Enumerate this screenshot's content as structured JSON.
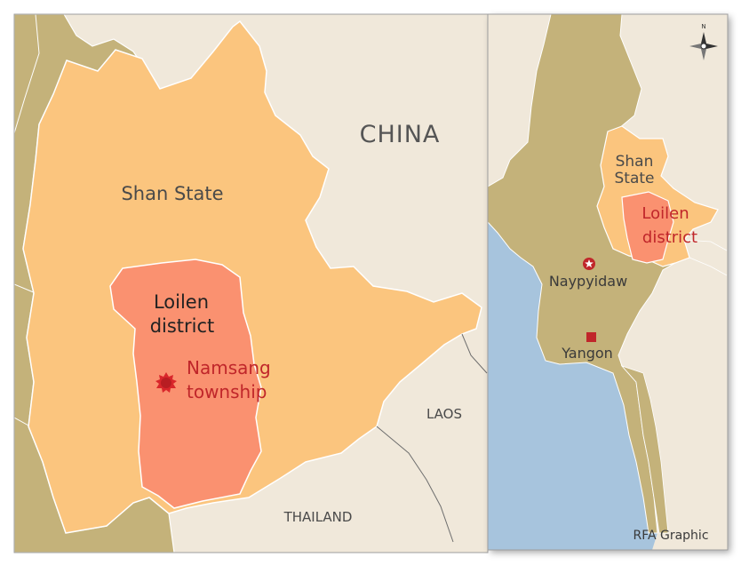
{
  "main_map": {
    "labels": {
      "china": "CHINA",
      "shan_state": "Shan State",
      "loilen_line1": "Loilen",
      "loilen_line2": "district",
      "namsang_line1": "Namsang",
      "namsang_line2": "township",
      "laos": "LAOS",
      "thailand": "THAILAND"
    }
  },
  "inset_map": {
    "labels": {
      "shan_line1": "Shan",
      "shan_line2": "State",
      "loilen_line1": "Loilen",
      "loilen_line2": "district",
      "naypyidaw": "Naypyidaw",
      "yangon": "Yangon",
      "credit": "RFA Graphic",
      "compass_north": "N"
    }
  },
  "colors": {
    "background_land": "#f0e8da",
    "neighbor_land": "#c4b27a",
    "shan_state": "#fbc57e",
    "loilen_district": "#fa9170",
    "water": "#a7c4dd",
    "label_red": "#c0262a",
    "label_dark": "#3a3a3a"
  },
  "icons": {
    "namsang_marker": "burst-marker-icon",
    "naypyidaw_marker": "capital-star-icon",
    "yangon_marker": "city-square-icon",
    "compass": "compass-rose-icon"
  }
}
